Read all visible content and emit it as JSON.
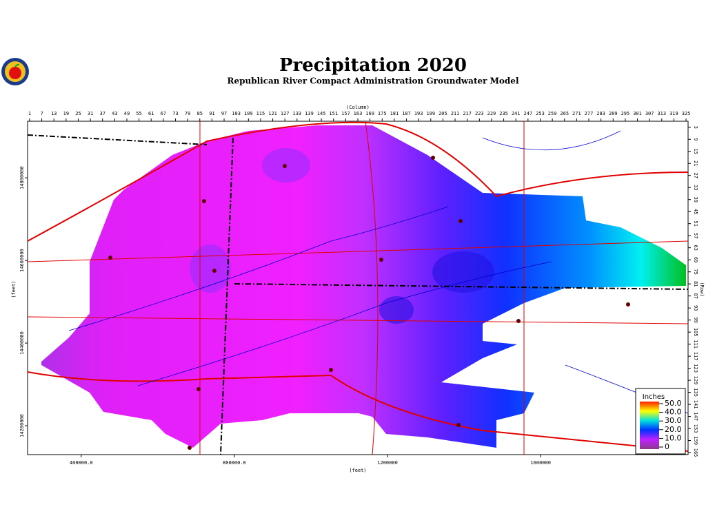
{
  "header": {
    "title": "Precipitation 2020",
    "subtitle": "Republican River Compact Administration Groundwater Model"
  },
  "map": {
    "column_label": "(Column)",
    "column_range": [
      0,
      326
    ],
    "column_ticks": [
      1,
      7,
      13,
      19,
      25,
      31,
      37,
      43,
      49,
      55,
      61,
      67,
      73,
      79,
      85,
      91,
      97,
      103,
      109,
      115,
      121,
      127,
      133,
      139,
      145,
      151,
      157,
      163,
      169,
      175,
      181,
      187,
      193,
      199,
      205,
      211,
      217,
      223,
      229,
      235,
      241,
      247,
      253,
      259,
      265,
      271,
      277,
      283,
      289,
      295,
      301,
      307,
      313,
      319,
      325
    ],
    "row_label": "(Row)",
    "row_range": [
      0,
      166
    ],
    "row_ticks": [
      3,
      9,
      15,
      21,
      27,
      33,
      39,
      45,
      51,
      57,
      63,
      69,
      75,
      81,
      87,
      93,
      99,
      105,
      111,
      117,
      123,
      129,
      135,
      141,
      147,
      153,
      159,
      165
    ],
    "x_label": "(feet)",
    "x_range": [
      260000,
      1985000
    ],
    "x_ticks": [
      {
        "value": 400000,
        "label": "400000.0"
      },
      {
        "value": 800000,
        "label": "800000.0"
      },
      1200000,
      1600000
    ],
    "y_label": "(feet)",
    "y_range": [
      14130000,
      14937000
    ],
    "y_ticks": [
      14800000,
      14600000,
      14400000,
      14200000
    ],
    "legend": {
      "title": "Inches",
      "range": [
        0,
        50
      ],
      "ticks": [
        {
          "value": 50,
          "label": "50.0"
        },
        {
          "value": 40,
          "label": "40.0"
        },
        {
          "value": 30,
          "label": "30.0"
        },
        {
          "value": 20,
          "label": "20.0"
        },
        {
          "value": 10,
          "label": "10.0"
        },
        0
      ],
      "colors": [
        "#8a3a8a",
        "#c020ff",
        "#0030ff",
        "#00e0e0",
        "#ffff00",
        "#ff2000"
      ]
    }
  }
}
